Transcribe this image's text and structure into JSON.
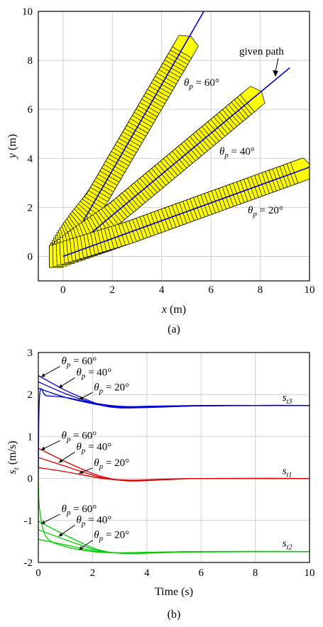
{
  "chart_data": [
    {
      "id": "a",
      "type": "line",
      "panel_label": "(a)",
      "xlabel_var": "x",
      "xlabel_unit": " (m)",
      "ylabel_var": "y",
      "ylabel_unit": " (m)",
      "xlim": [
        -1,
        10
      ],
      "ylim": [
        -1,
        10
      ],
      "xticks": [
        0,
        2,
        4,
        6,
        8,
        10
      ],
      "yticks": [
        0,
        2,
        4,
        6,
        8,
        10
      ],
      "grid": true,
      "given_path_label": "given path",
      "paths": [
        {
          "theta_deg": 60,
          "label": "= 60°",
          "start": [
            0,
            0
          ],
          "arrow_end": [
            5.1,
            8.8
          ],
          "line_end": [
            6.0,
            10.5
          ]
        },
        {
          "theta_deg": 40,
          "label": "= 40°",
          "start": [
            0,
            0
          ],
          "arrow_end": [
            7.9,
            6.6
          ],
          "line_end": [
            9.2,
            7.7
          ]
        },
        {
          "theta_deg": 20,
          "label": "= 20°",
          "start": [
            0,
            0
          ],
          "arrow_end": [
            9.9,
            3.6
          ],
          "line_end": [
            10.0,
            3.64
          ]
        }
      ],
      "arrow_color": "#ffff00",
      "path_color": "#0000cc"
    },
    {
      "id": "b",
      "type": "line",
      "panel_label": "(b)",
      "xlabel": "Time (s)",
      "ylabel_var": "s",
      "ylabel_sub": "t",
      "ylabel_unit": " (m/s)",
      "xlim": [
        0,
        10
      ],
      "ylim": [
        -2,
        3
      ],
      "xticks": [
        0,
        2,
        4,
        6,
        8,
        10
      ],
      "yticks": [
        -2,
        -1,
        0,
        1,
        2,
        3
      ],
      "grid": true,
      "series": [
        {
          "name": "st3",
          "color": "#0000cc",
          "x": [
            0,
            0.1
          ],
          "groups": [
            {
              "theta": 60,
              "y": [
                [
                  0,
                  2.45
                ],
                [
                  1.0,
                  2.1
                ],
                [
                  2.0,
                  1.82
                ],
                [
                  2.5,
                  1.72
                ],
                [
                  3.0,
                  1.68
                ],
                [
                  3.5,
                  1.68
                ],
                [
                  4.0,
                  1.69
                ],
                [
                  5.0,
                  1.71
                ],
                [
                  6.0,
                  1.73
                ],
                [
                  8.0,
                  1.74
                ],
                [
                  10.0,
                  1.74
                ]
              ]
            },
            {
              "theta": 40,
              "y": [
                [
                  0,
                  2.3
                ],
                [
                  1.0,
                  2.02
                ],
                [
                  2.0,
                  1.8
                ],
                [
                  2.5,
                  1.72
                ],
                [
                  3.0,
                  1.69
                ],
                [
                  3.5,
                  1.69
                ],
                [
                  4.0,
                  1.7
                ],
                [
                  5.0,
                  1.72
                ],
                [
                  6.0,
                  1.73
                ],
                [
                  8.0,
                  1.74
                ],
                [
                  10.0,
                  1.74
                ]
              ]
            },
            {
              "theta": 20,
              "y": [
                [
                  0,
                  2.15
                ],
                [
                  1.0,
                  1.93
                ],
                [
                  2.0,
                  1.78
                ],
                [
                  2.5,
                  1.73
                ],
                [
                  3.0,
                  1.71
                ],
                [
                  3.5,
                  1.71
                ],
                [
                  4.0,
                  1.72
                ],
                [
                  5.0,
                  1.73
                ],
                [
                  6.0,
                  1.74
                ],
                [
                  8.0,
                  1.74
                ],
                [
                  10.0,
                  1.74
                ]
              ]
            },
            {
              "theta": 0,
              "y": [
                [
                  0,
                  0.0
                ],
                [
                  0.05,
                  2.0
                ],
                [
                  0.3,
                  1.97
                ],
                [
                  1.0,
                  1.93
                ],
                [
                  2.0,
                  1.8
                ],
                [
                  3.0,
                  1.72
                ],
                [
                  4.0,
                  1.71
                ],
                [
                  6.0,
                  1.73
                ],
                [
                  10.0,
                  1.74
                ]
              ]
            }
          ]
        },
        {
          "name": "st1",
          "color": "#dd0000",
          "groups": [
            {
              "theta": 60,
              "y": [
                [
                  0,
                  0.72
                ],
                [
                  1.0,
                  0.4
                ],
                [
                  2.0,
                  0.12
                ],
                [
                  2.5,
                  0.02
                ],
                [
                  3.0,
                  -0.04
                ],
                [
                  3.5,
                  -0.06
                ],
                [
                  4.0,
                  -0.05
                ],
                [
                  5.0,
                  -0.02
                ],
                [
                  6.0,
                  0.0
                ],
                [
                  10.0,
                  0.0
                ]
              ]
            },
            {
              "theta": 40,
              "y": [
                [
                  0,
                  0.5
                ],
                [
                  1.0,
                  0.29
                ],
                [
                  2.0,
                  0.08
                ],
                [
                  2.5,
                  0.0
                ],
                [
                  3.0,
                  -0.04
                ],
                [
                  3.5,
                  -0.05
                ],
                [
                  4.0,
                  -0.04
                ],
                [
                  5.0,
                  -0.02
                ],
                [
                  6.0,
                  0.0
                ],
                [
                  10.0,
                  0.0
                ]
              ]
            },
            {
              "theta": 20,
              "y": [
                [
                  0,
                  0.26
                ],
                [
                  1.0,
                  0.16
                ],
                [
                  2.0,
                  0.04
                ],
                [
                  2.5,
                  -0.01
                ],
                [
                  3.0,
                  -0.03
                ],
                [
                  3.5,
                  -0.04
                ],
                [
                  4.0,
                  -0.03
                ],
                [
                  5.0,
                  -0.01
                ],
                [
                  6.0,
                  0.0
                ],
                [
                  10.0,
                  0.0
                ]
              ]
            }
          ]
        },
        {
          "name": "st2",
          "color": "#00cc00",
          "groups": [
            {
              "theta": 60,
              "y": [
                [
                  0,
                  -1.02
                ],
                [
                  1.0,
                  -1.35
                ],
                [
                  2.0,
                  -1.65
                ],
                [
                  2.5,
                  -1.74
                ],
                [
                  3.0,
                  -1.78
                ],
                [
                  3.5,
                  -1.79
                ],
                [
                  4.0,
                  -1.78
                ],
                [
                  5.0,
                  -1.76
                ],
                [
                  6.0,
                  -1.75
                ],
                [
                  10.0,
                  -1.74
                ]
              ]
            },
            {
              "theta": 40,
              "y": [
                [
                  0,
                  -1.22
                ],
                [
                  1.0,
                  -1.46
                ],
                [
                  2.0,
                  -1.68
                ],
                [
                  2.5,
                  -1.75
                ],
                [
                  3.0,
                  -1.78
                ],
                [
                  3.5,
                  -1.78
                ],
                [
                  4.0,
                  -1.77
                ],
                [
                  5.0,
                  -1.75
                ],
                [
                  6.0,
                  -1.74
                ],
                [
                  10.0,
                  -1.74
                ]
              ]
            },
            {
              "theta": 20,
              "y": [
                [
                  0,
                  -1.45
                ],
                [
                  1.0,
                  -1.58
                ],
                [
                  2.0,
                  -1.72
                ],
                [
                  2.5,
                  -1.76
                ],
                [
                  3.0,
                  -1.77
                ],
                [
                  3.5,
                  -1.77
                ],
                [
                  4.0,
                  -1.76
                ],
                [
                  5.0,
                  -1.75
                ],
                [
                  6.0,
                  -1.74
                ],
                [
                  10.0,
                  -1.74
                ]
              ]
            },
            {
              "theta": 0,
              "y": [
                [
                  0,
                  0.0
                ],
                [
                  0.05,
                  -0.75
                ],
                [
                  0.3,
                  -1.4
                ],
                [
                  1.0,
                  -1.62
                ],
                [
                  2.0,
                  -1.74
                ],
                [
                  3.0,
                  -1.77
                ],
                [
                  4.0,
                  -1.76
                ],
                [
                  6.0,
                  -1.74
                ],
                [
                  10.0,
                  -1.74
                ]
              ]
            }
          ]
        }
      ],
      "curve_labels": [
        {
          "var": "s",
          "sub": "t3",
          "at": [
            9.0,
            1.85
          ]
        },
        {
          "var": "s",
          "sub": "t1",
          "at": [
            9.0,
            0.1
          ]
        },
        {
          "var": "s",
          "sub": "t2",
          "at": [
            9.0,
            -1.62
          ]
        }
      ],
      "theta_labels": [
        {
          "text": "= 60°",
          "at": [
            0.85,
            2.72
          ],
          "tip": [
            0.1,
            2.42
          ]
        },
        {
          "text": "= 40°",
          "at": [
            1.4,
            2.45
          ],
          "tip": [
            0.75,
            2.16
          ]
        },
        {
          "text": "= 20°",
          "at": [
            2.05,
            2.1
          ],
          "tip": [
            1.5,
            1.88
          ]
        },
        {
          "text": "= 60°",
          "at": [
            0.85,
            0.95
          ],
          "tip": [
            0.1,
            0.68
          ]
        },
        {
          "text": "= 40°",
          "at": [
            1.4,
            0.68
          ],
          "tip": [
            0.75,
            0.38
          ]
        },
        {
          "text": "= 20°",
          "at": [
            2.05,
            0.3
          ],
          "tip": [
            1.5,
            0.12
          ]
        },
        {
          "text": "= 60°",
          "at": [
            0.85,
            -0.8
          ],
          "tip": [
            0.1,
            -1.08
          ]
        },
        {
          "text": "= 40°",
          "at": [
            1.4,
            -1.06
          ],
          "tip": [
            0.75,
            -1.38
          ]
        },
        {
          "text": "= 20°",
          "at": [
            2.05,
            -1.42
          ],
          "tip": [
            1.5,
            -1.7
          ]
        }
      ]
    }
  ]
}
